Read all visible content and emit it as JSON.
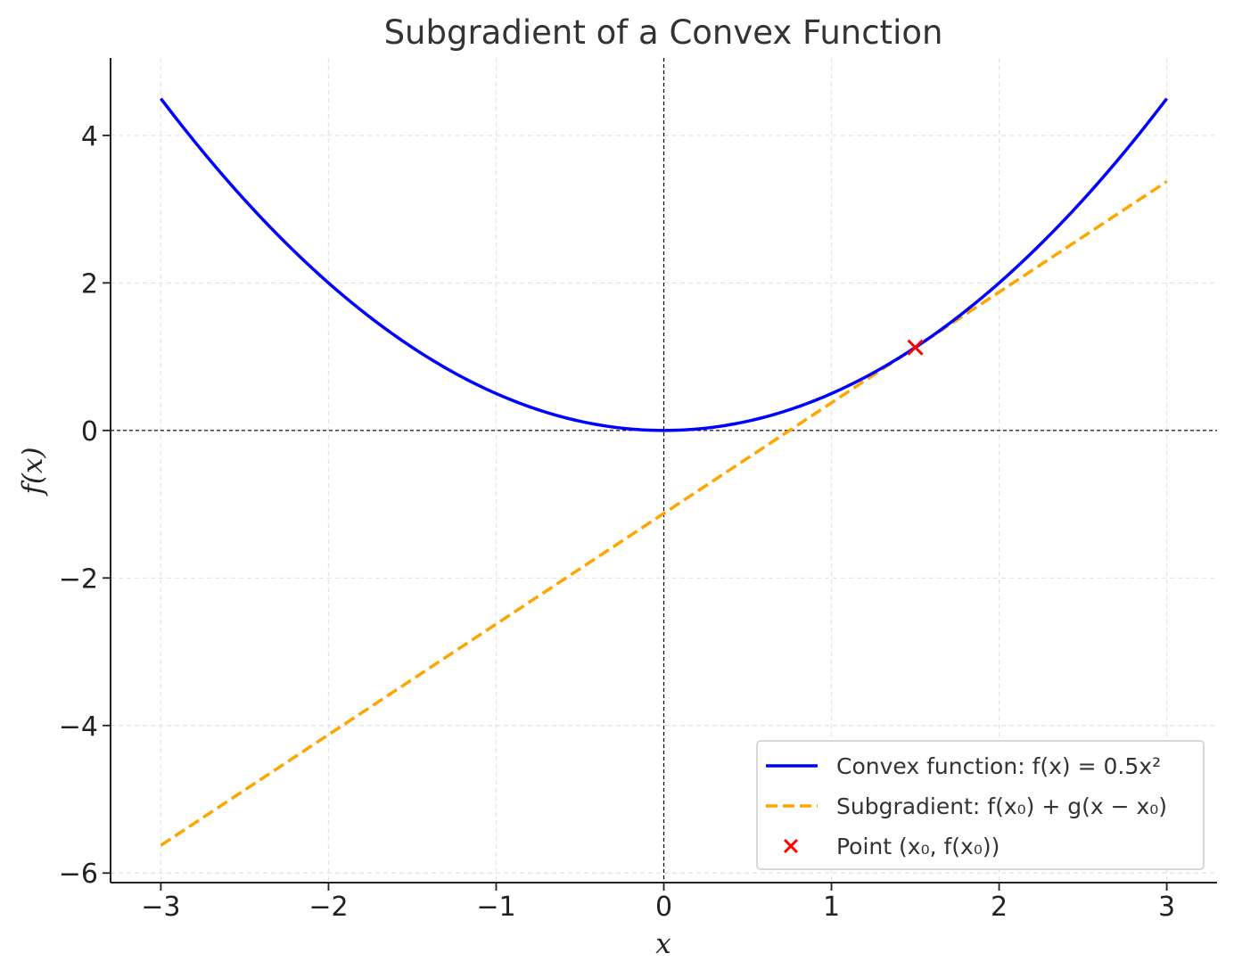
{
  "chart_data": {
    "type": "line",
    "title": "Subgradient of a Convex Function",
    "xlabel": "x",
    "ylabel": "f(x)",
    "xlim": [
      -3.3,
      3.3
    ],
    "ylim": [
      -6.13,
      5.05
    ],
    "xticks": [
      -3,
      -2,
      -1,
      0,
      1,
      2,
      3
    ],
    "xtick_labels": [
      "−3",
      "−2",
      "−1",
      "0",
      "1",
      "2",
      "3"
    ],
    "yticks": [
      -6,
      -4,
      -2,
      0,
      2,
      4
    ],
    "ytick_labels": [
      "−6",
      "−4",
      "−2",
      "0",
      "2",
      "4"
    ],
    "grid": true,
    "reference_lines": {
      "x": 0,
      "y": 0
    },
    "legend_position": "lower-right",
    "series": [
      {
        "name": "Convex function: f(x) = 0.5x²",
        "kind": "function",
        "expression": "0.5*x^2",
        "x_range": [
          -3,
          3
        ],
        "color": "#0000ff",
        "style": "solid"
      },
      {
        "name": "Subgradient: f(x₀) + g(x − x₀)",
        "kind": "line",
        "x": [
          -3,
          3
        ],
        "y": [
          -5.625,
          3.375
        ],
        "color": "#ffa500",
        "style": "dashed"
      },
      {
        "name": "Point (x₀, f(x₀))",
        "kind": "scatter",
        "x": [
          1.5
        ],
        "y": [
          1.125
        ],
        "marker": "x",
        "color": "#ff0000"
      }
    ]
  }
}
